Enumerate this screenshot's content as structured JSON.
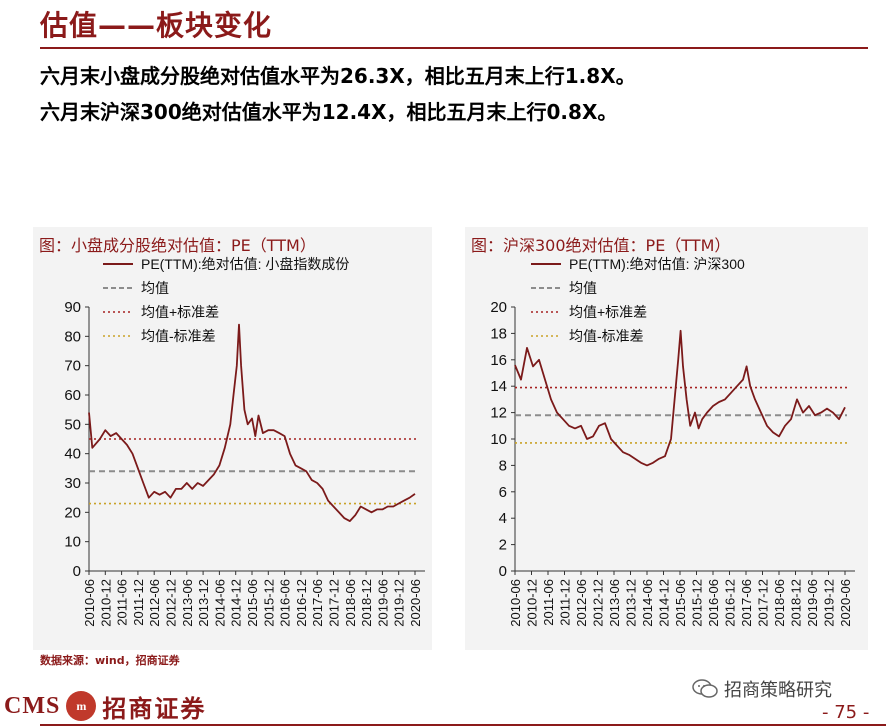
{
  "page": {
    "title": "估值——板块变化",
    "summary_lines": [
      "六月末小盘成分股绝对估值水平为26.3X，相比五月末上行1.8X。",
      "六月末沪深300绝对估值水平为12.4X，相比五月末上行0.8X。"
    ],
    "source": "数据来源：wind，招商证券",
    "logo_en": "CMS",
    "logo_mark": "m",
    "logo_cn": "招商证券",
    "wechat_label": "招商策略研究",
    "page_number": "- 75 -"
  },
  "colors": {
    "accent": "#8b1a1a",
    "pe_line": "#7b1a1a",
    "mean_line": "#8c8c8c",
    "upper_line": "#a52020",
    "lower_line": "#c9a227",
    "panel_bg": "#f3f3f3"
  },
  "chart_data": [
    {
      "type": "line",
      "title": "图：小盘成分股绝对估值：PE（TTM）",
      "ylim": [
        0,
        90
      ],
      "yticks": [
        0,
        10,
        20,
        30,
        40,
        50,
        60,
        70,
        80,
        90
      ],
      "x_tick_labels": [
        "2010-06",
        "2010-12",
        "2011-06",
        "2011-12",
        "2012-06",
        "2012-12",
        "2013-06",
        "2013-12",
        "2014-06",
        "2014-12",
        "2015-06",
        "2015-12",
        "2016-06",
        "2016-12",
        "2017-06",
        "2017-12",
        "2018-06",
        "2018-12",
        "2019-06",
        "2019-12",
        "2020-06"
      ],
      "legend_placement": "top-left",
      "series": [
        {
          "name": "PE(TTM):绝对估值: 小盘指数成份",
          "style": "solid",
          "points": [
            [
              0,
              54
            ],
            [
              0.3,
              42
            ],
            [
              1,
              45
            ],
            [
              1.5,
              48
            ],
            [
              2,
              46
            ],
            [
              2.5,
              47
            ],
            [
              3,
              45
            ],
            [
              3.5,
              43
            ],
            [
              4,
              40
            ],
            [
              4.5,
              35
            ],
            [
              5,
              30
            ],
            [
              5.5,
              25
            ],
            [
              6,
              27
            ],
            [
              6.5,
              26
            ],
            [
              7,
              27
            ],
            [
              7.5,
              25
            ],
            [
              8,
              28
            ],
            [
              8.5,
              28
            ],
            [
              9,
              30
            ],
            [
              9.5,
              28
            ],
            [
              10,
              30
            ],
            [
              10.5,
              29
            ],
            [
              11,
              31
            ],
            [
              11.5,
              33
            ],
            [
              12,
              36
            ],
            [
              12.5,
              42
            ],
            [
              13,
              50
            ],
            [
              13.3,
              60
            ],
            [
              13.6,
              70
            ],
            [
              13.8,
              84
            ],
            [
              14,
              70
            ],
            [
              14.3,
              55
            ],
            [
              14.6,
              50
            ],
            [
              15,
              52
            ],
            [
              15.3,
              46
            ],
            [
              15.6,
              53
            ],
            [
              16,
              47
            ],
            [
              16.5,
              48
            ],
            [
              17,
              48
            ],
            [
              17.5,
              47
            ],
            [
              18,
              46
            ],
            [
              18.5,
              40
            ],
            [
              19,
              36
            ],
            [
              19.5,
              35
            ],
            [
              20,
              34
            ],
            [
              20.5,
              31
            ],
            [
              21,
              30
            ],
            [
              21.5,
              28
            ],
            [
              22,
              24
            ],
            [
              22.5,
              22
            ],
            [
              23,
              20
            ],
            [
              23.5,
              18
            ],
            [
              24,
              17
            ],
            [
              24.5,
              19
            ],
            [
              25,
              22
            ],
            [
              25.5,
              21
            ],
            [
              26,
              20
            ],
            [
              26.5,
              21
            ],
            [
              27,
              21
            ],
            [
              27.5,
              22
            ],
            [
              28,
              22
            ],
            [
              28.5,
              23
            ],
            [
              29,
              24
            ],
            [
              29.5,
              25
            ],
            [
              30,
              26.3
            ]
          ]
        },
        {
          "name": "均值",
          "style": "dashed",
          "value": 34
        },
        {
          "name": "均值+标准差",
          "style": "dotted",
          "value": 45
        },
        {
          "name": "均值-标准差",
          "style": "dotted",
          "value": 23
        }
      ]
    },
    {
      "type": "line",
      "title": "图：沪深300绝对估值：PE（TTM）",
      "ylim": [
        0,
        20
      ],
      "yticks": [
        0,
        2,
        4,
        6,
        8,
        10,
        12,
        14,
        16,
        18,
        20
      ],
      "x_tick_labels": [
        "2010-06",
        "2010-12",
        "2011-06",
        "2011-12",
        "2012-06",
        "2012-12",
        "2013-06",
        "2013-12",
        "2014-06",
        "2014-12",
        "2015-06",
        "2015-12",
        "2016-06",
        "2016-12",
        "2017-06",
        "2017-12",
        "2018-06",
        "2018-12",
        "2019-06",
        "2019-12",
        "2020-06"
      ],
      "legend_placement": "top-left",
      "series": [
        {
          "name": "PE(TTM):绝对估值: 沪深300",
          "style": "solid",
          "points": [
            [
              0,
              15.6
            ],
            [
              0.5,
              14.5
            ],
            [
              1,
              16.9
            ],
            [
              1.5,
              15.5
            ],
            [
              2,
              16
            ],
            [
              2.5,
              14.5
            ],
            [
              3,
              13
            ],
            [
              3.5,
              12
            ],
            [
              4,
              11.5
            ],
            [
              4.5,
              11
            ],
            [
              5,
              10.8
            ],
            [
              5.5,
              11
            ],
            [
              6,
              10
            ],
            [
              6.5,
              10.2
            ],
            [
              7,
              11
            ],
            [
              7.5,
              11.2
            ],
            [
              8,
              10
            ],
            [
              8.5,
              9.5
            ],
            [
              9,
              9
            ],
            [
              9.5,
              8.8
            ],
            [
              10,
              8.5
            ],
            [
              10.5,
              8.2
            ],
            [
              11,
              8
            ],
            [
              11.5,
              8.2
            ],
            [
              12,
              8.5
            ],
            [
              12.5,
              8.7
            ],
            [
              13,
              10
            ],
            [
              13.3,
              13
            ],
            [
              13.6,
              16
            ],
            [
              13.8,
              18.2
            ],
            [
              14,
              15.5
            ],
            [
              14.3,
              13
            ],
            [
              14.6,
              11
            ],
            [
              15,
              12
            ],
            [
              15.3,
              10.8
            ],
            [
              15.6,
              11.5
            ],
            [
              16,
              12
            ],
            [
              16.5,
              12.5
            ],
            [
              17,
              12.8
            ],
            [
              17.5,
              13
            ],
            [
              18,
              13.5
            ],
            [
              18.5,
              14
            ],
            [
              19,
              14.5
            ],
            [
              19.3,
              15.5
            ],
            [
              19.6,
              14
            ],
            [
              20,
              13
            ],
            [
              20.5,
              12
            ],
            [
              21,
              11
            ],
            [
              21.5,
              10.5
            ],
            [
              22,
              10.2
            ],
            [
              22.5,
              11
            ],
            [
              23,
              11.5
            ],
            [
              23.5,
              13
            ],
            [
              24,
              12
            ],
            [
              24.5,
              12.5
            ],
            [
              25,
              11.8
            ],
            [
              25.5,
              12
            ],
            [
              26,
              12.3
            ],
            [
              26.5,
              12
            ],
            [
              27,
              11.5
            ],
            [
              27.5,
              12.4
            ]
          ]
        },
        {
          "name": "均值",
          "style": "dashed",
          "value": 11.8
        },
        {
          "name": "均值+标准差",
          "style": "dotted",
          "value": 13.9
        },
        {
          "name": "均值-标准差",
          "style": "dotted",
          "value": 9.7
        }
      ]
    }
  ]
}
